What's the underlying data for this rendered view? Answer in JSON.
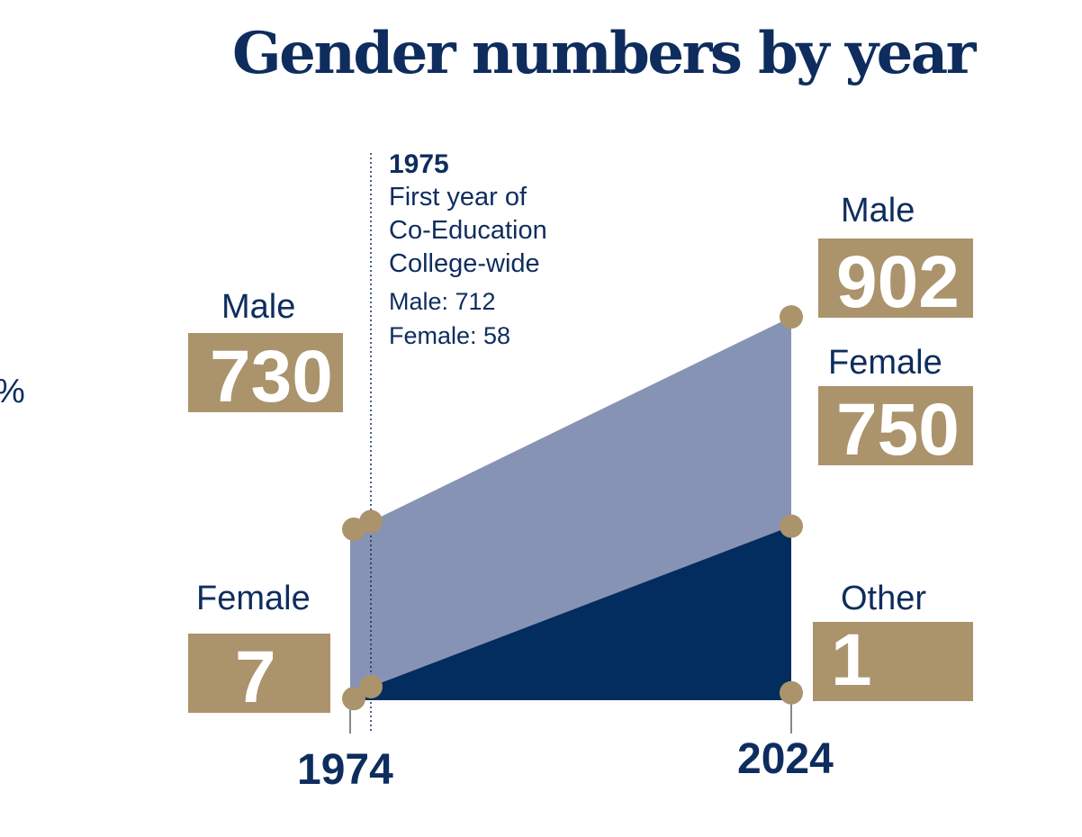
{
  "title": "Gender numbers by year",
  "stray_glyph": "%",
  "annotation": {
    "year": "1975",
    "line1": "First year of",
    "line2": "Co-Education",
    "line3": "College-wide",
    "male": "Male: 712",
    "female": "Female: 58"
  },
  "labels": {
    "male_1974": "Male",
    "female_1974": "Female",
    "male_2024": "Male",
    "female_2024": "Female",
    "other_2024": "Other"
  },
  "values": {
    "male_1974": "730",
    "female_1974": "7",
    "male_2024": "902",
    "female_2024": "750",
    "other_2024": "1"
  },
  "axis": {
    "start": "1974",
    "end": "2024"
  },
  "colors": {
    "navy": "#0e2d5e",
    "light_area": "#8793b5",
    "dark_area": "#032c5f",
    "gold": "#ab936c"
  },
  "chart_data": {
    "type": "area",
    "title": "Gender numbers by year",
    "x": [
      1974,
      1975,
      2024
    ],
    "series": [
      {
        "name": "Female",
        "values": [
          7,
          58,
          750
        ]
      },
      {
        "name": "Male",
        "values": [
          730,
          712,
          902
        ]
      },
      {
        "name": "Other",
        "values": [
          null,
          null,
          1
        ]
      }
    ],
    "stacked": true,
    "annotations": [
      {
        "x": 1975,
        "text": "1975 First year of Co-Education College-wide Male: 712 Female: 58"
      }
    ],
    "grid": false
  }
}
